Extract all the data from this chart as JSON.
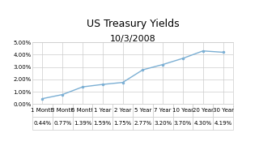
{
  "title": "US Treasury Yields",
  "subtitle": "10/3/2008",
  "x_labels": [
    "1 Month",
    "3 Month",
    "6 Month",
    "1 Year",
    "2 Year",
    "5 Year",
    "7 Year",
    "10 Year",
    "20 Year",
    "30 Year"
  ],
  "x_labels_short": [
    "1Month",
    "3Month",
    "6Month",
    "1 Year",
    "2 Year",
    "5 Year",
    "7 Year",
    "10 Year",
    "20 Year",
    "30 Year"
  ],
  "yields": [
    0.44,
    0.77,
    1.39,
    1.59,
    1.75,
    2.77,
    3.2,
    3.7,
    4.3,
    4.19
  ],
  "yield_labels": [
    "0.44%",
    "0.77%",
    "1.39%",
    "1.59%",
    "1.75%",
    "2.77%",
    "3.20%",
    "3.70%",
    "4.30%",
    "4.19%"
  ],
  "ylim": [
    0,
    5
  ],
  "yticks": [
    0,
    1,
    2,
    3,
    4,
    5
  ],
  "ytick_labels": [
    "0.00%",
    "1.00%",
    "2.00%",
    "3.00%",
    "4.00%",
    "5.00%"
  ],
  "line_color": "#7bafd4",
  "bg_color": "#ffffff",
  "grid_color": "#cccccc",
  "table_header_color": "#ffffff",
  "title_fontsize": 9,
  "subtitle_fontsize": 8,
  "tick_fontsize": 5,
  "table_fontsize": 5
}
